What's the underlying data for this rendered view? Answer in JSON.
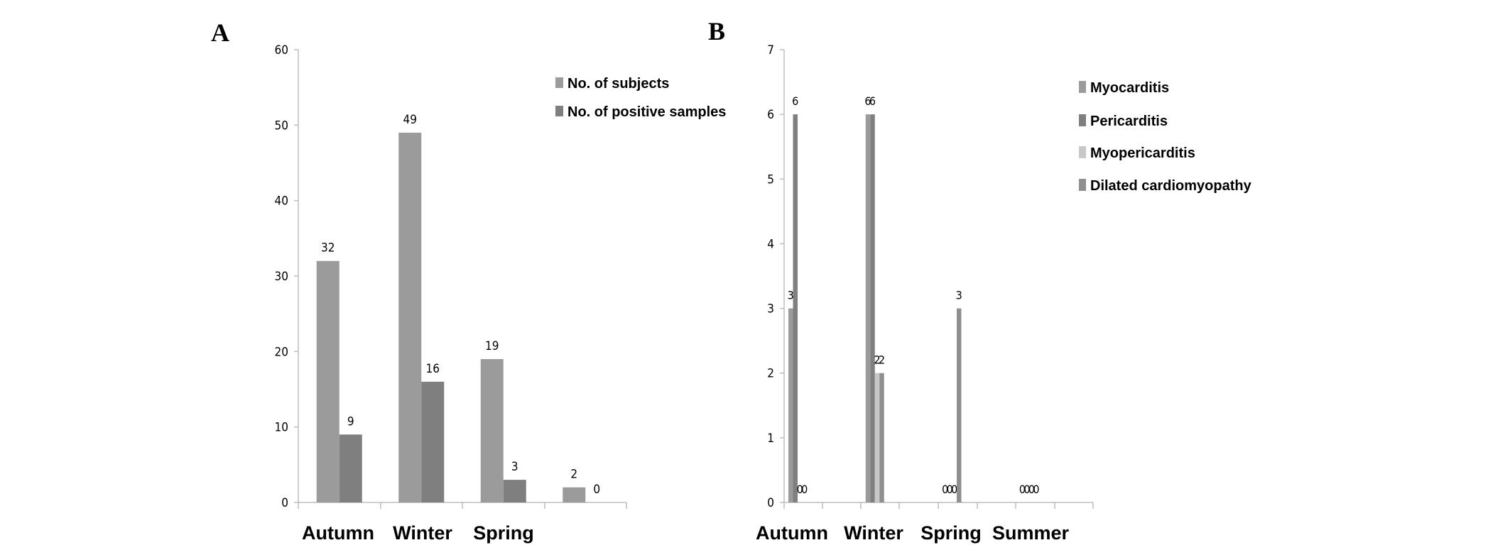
{
  "panel_labels": {
    "a": "A",
    "b": "B"
  },
  "colors": {
    "axis": "#bdbdbd",
    "text": "#000000",
    "subjects": "#9b9b9b",
    "positive": "#7f7f7f",
    "myocarditis": "#9b9b9b",
    "pericarditis": "#7f7f7f",
    "myopericarditis": "#c8c8c8",
    "dilated": "#8f8f8f"
  },
  "chart_data": [
    {
      "panel": "A",
      "type": "bar",
      "categories": [
        "Autumn",
        "Winter",
        "Spring",
        ""
      ],
      "series": [
        {
          "name": "No. of subjects",
          "values": [
            32,
            49,
            19,
            2
          ]
        },
        {
          "name": "No. of positive samples",
          "values": [
            9,
            16,
            3,
            0
          ]
        }
      ],
      "data_labels": [
        [
          "32",
          "49",
          "19",
          "2"
        ],
        [
          "9",
          "16",
          "3",
          "0"
        ]
      ],
      "ylim": [
        0,
        60
      ],
      "yticks": [
        0,
        10,
        20,
        30,
        40,
        50,
        60
      ],
      "xlabel": "",
      "ylabel": "",
      "legend": "top-right",
      "grid": false
    },
    {
      "panel": "B",
      "type": "bar",
      "categories": [
        "Autumn",
        "Winter",
        "Spring",
        "Summer"
      ],
      "series": [
        {
          "name": "Myocarditis",
          "values": [
            3,
            6,
            0,
            0
          ]
        },
        {
          "name": "Pericarditis",
          "values": [
            6,
            6,
            0,
            0
          ]
        },
        {
          "name": "Myopericarditis",
          "values": [
            0,
            2,
            0,
            0
          ]
        },
        {
          "name": "Dilated cardiomyopathy",
          "values": [
            0,
            2,
            3,
            0
          ]
        }
      ],
      "data_labels": [
        [
          "3",
          "6",
          "0",
          "0"
        ],
        [
          "6",
          "6",
          "0",
          "0"
        ],
        [
          "0",
          "2",
          "0",
          "0"
        ],
        [
          "0",
          "2",
          "3",
          "0"
        ]
      ],
      "ylim": [
        0,
        7
      ],
      "yticks": [
        0,
        1,
        2,
        3,
        4,
        5,
        6,
        7
      ],
      "xlabel": "",
      "ylabel": "",
      "legend": "top-right",
      "grid": false
    }
  ]
}
